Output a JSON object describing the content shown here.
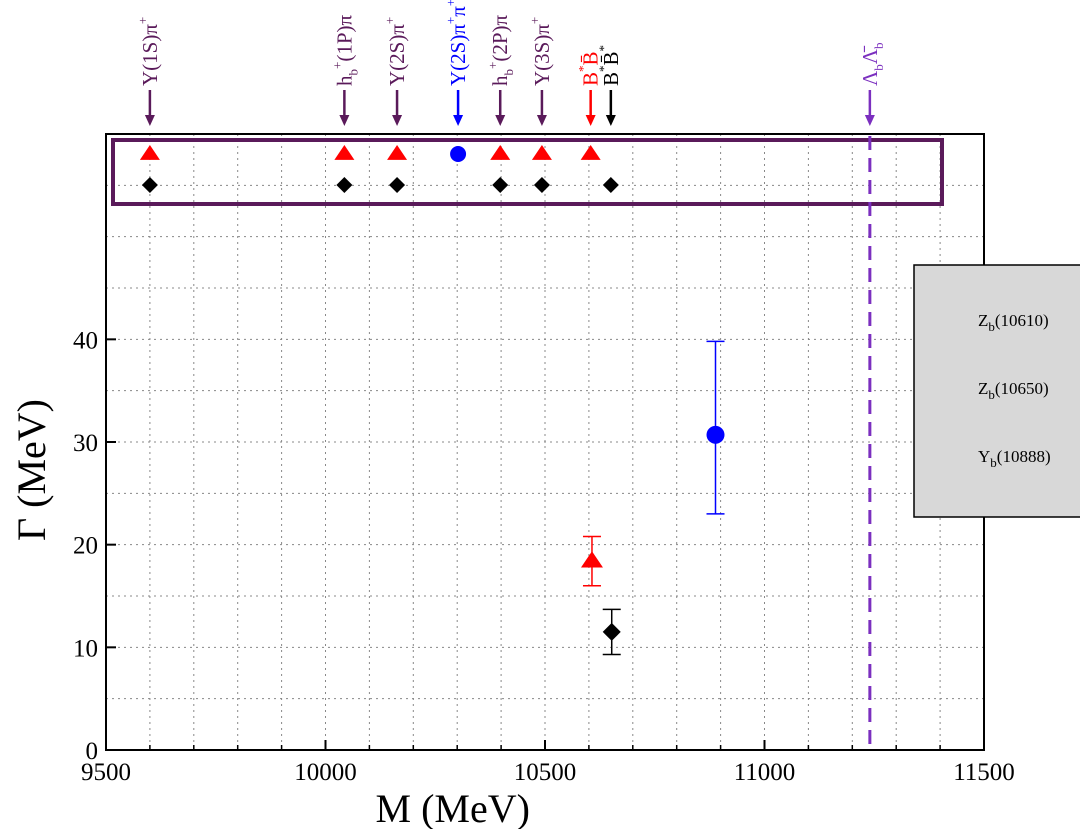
{
  "chart_data": {
    "type": "scatter",
    "xlabel": "M (MeV)",
    "ylabel": "Γ (MeV)",
    "xlim": [
      9500,
      11500
    ],
    "ylim": [
      0,
      50
    ],
    "x_ticks": [
      9500,
      10000,
      10500,
      11000,
      11500
    ],
    "y_ticks": [
      0,
      10,
      20,
      30,
      40
    ],
    "grid": true,
    "legend_position": "right",
    "series": [
      {
        "name": "Z_b(10610)",
        "marker": "triangle",
        "color": "#ff0000",
        "points": [
          {
            "x": 10607,
            "y": 18.4,
            "err_low": 2.4,
            "err_high": 2.4
          }
        ]
      },
      {
        "name": "Z_b(10650)",
        "marker": "diamond",
        "color": "#000000",
        "points": [
          {
            "x": 10652,
            "y": 11.5,
            "err_low": 2.2,
            "err_high": 2.2
          }
        ]
      },
      {
        "name": "Y_b(10888)",
        "marker": "circle",
        "color": "#0000ff",
        "points": [
          {
            "x": 10888.4,
            "y": 30.7,
            "err_low": 7.7,
            "err_high": 9.1
          }
        ]
      }
    ],
    "thresholds": {
      "triangles": [
        9600,
        10043,
        10163,
        10398,
        10493,
        10604
      ],
      "diamonds": [
        9600,
        10043,
        10163,
        10398,
        10493,
        10650
      ],
      "circles": [
        10302
      ]
    },
    "annotations": [
      {
        "x": 9600,
        "label": "Υ(1S)π",
        "sup": "+",
        "color": "#5a1a5a"
      },
      {
        "x": 10043,
        "label": "h",
        "sub": "b",
        "rest": "(1P)π",
        "sup": "+",
        "color": "#5a1a5a"
      },
      {
        "x": 10163,
        "label": "Υ(2S)π",
        "sup": "+",
        "color": "#5a1a5a"
      },
      {
        "x": 10302,
        "label": "Υ(2S)π",
        "sup": "+",
        "rest": "π",
        "sup2": "+",
        "color": "#0000ff"
      },
      {
        "x": 10398,
        "label": "h",
        "sub": "b",
        "rest": "(2P)π",
        "sup": "+",
        "color": "#5a1a5a"
      },
      {
        "x": 10493,
        "label": "Υ(3S)π",
        "sup": "+",
        "color": "#5a1a5a"
      },
      {
        "x": 10604,
        "label": "B",
        "sup": "*",
        "rest": "B̄",
        "color": "#ff0000"
      },
      {
        "x": 10650,
        "label": "B",
        "sup": "*",
        "rest": "B̄",
        "sup2": "*",
        "color": "#000000"
      },
      {
        "x": 11240,
        "label": "Λ",
        "sub": "b",
        "rest": "Λ̄",
        "sub2": "b",
        "color": "#7b2fbf"
      }
    ],
    "threshold_line": {
      "x": 11240,
      "color": "#7b2fbf",
      "style": "dashed"
    },
    "legend": [
      {
        "marker": "triangle",
        "color": "#ff0000",
        "label": "Z",
        "sub": "b",
        "rest": "(10610)"
      },
      {
        "marker": "diamond",
        "color": "#000000",
        "label": "Z",
        "sub": "b",
        "rest": "(10650)"
      },
      {
        "marker": "circle",
        "color": "#0000ff",
        "label": "Y",
        "sub": "b",
        "rest": "(10888)"
      }
    ]
  }
}
